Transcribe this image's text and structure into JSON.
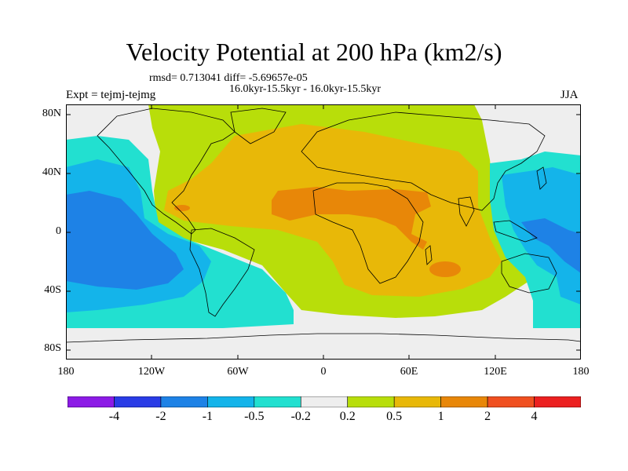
{
  "title": "Velocity Potential at 200 hPa (km2/s)",
  "stats_line": "rmsd= 0.713041 diff= -5.69657e-05",
  "period_line": "16.0kyr-15.5kyr - 16.0kyr-15.5kyr",
  "experiment": "Expt = tejmj-tejmg",
  "season": "JJA",
  "lat_ticks": [
    "80N",
    "40N",
    "0",
    "40S",
    "80S"
  ],
  "lon_ticks": [
    "180",
    "120W",
    "60W",
    "0",
    "60E",
    "120E",
    "180"
  ],
  "colorbar": {
    "labels": [
      "-4",
      "-2",
      "-1",
      "-0.5",
      "-0.2",
      "0.2",
      "0.5",
      "1",
      "2",
      "4"
    ],
    "colors": [
      "#8c1be6",
      "#2a3ce6",
      "#1e82e6",
      "#14b4ea",
      "#22e0d0",
      "#eeeeee",
      "#b8de0a",
      "#e8b808",
      "#e88708",
      "#f05020",
      "#ec2020"
    ]
  },
  "fill_colors": {
    "neg_1_to_2": "#1e82e6",
    "neg_05_to_1": "#14b4ea",
    "neg_02_to_05": "#22e0d0",
    "near_zero": "#eeeeee",
    "pos_02_to_05": "#b8de0a",
    "pos_05_to_1": "#e8b808",
    "pos_1_to_2": "#e88708"
  }
}
